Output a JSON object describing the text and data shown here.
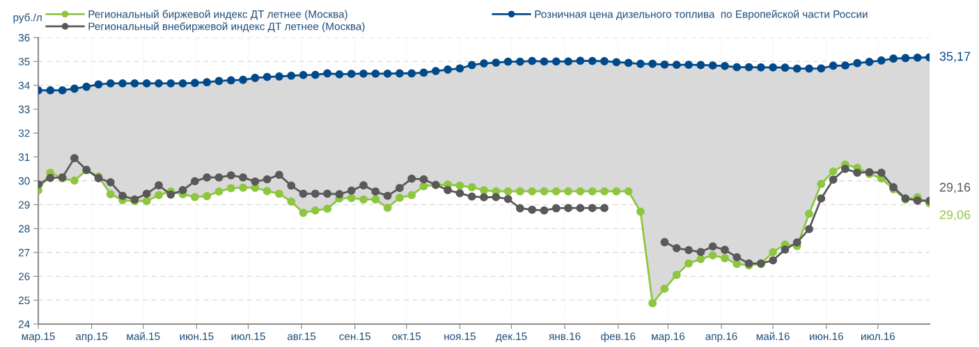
{
  "chart_data": {
    "type": "line",
    "ylabel": "руб./л",
    "marker": "circle",
    "line_style": "solid",
    "grid": true,
    "legend": "top",
    "x": [
      "2015-03-01",
      "2015-03-08",
      "2015-03-15",
      "2015-03-22",
      "2015-03-29",
      "2015-04-05",
      "2015-04-12",
      "2015-04-19",
      "2015-04-26",
      "2015-05-03",
      "2015-05-10",
      "2015-05-17",
      "2015-05-24",
      "2015-05-31",
      "2015-06-07",
      "2015-06-14",
      "2015-06-21",
      "2015-06-28",
      "2015-07-05",
      "2015-07-12",
      "2015-07-19",
      "2015-07-26",
      "2015-08-02",
      "2015-08-09",
      "2015-08-16",
      "2015-08-23",
      "2015-08-30",
      "2015-09-06",
      "2015-09-13",
      "2015-09-20",
      "2015-09-27",
      "2015-10-04",
      "2015-10-11",
      "2015-10-18",
      "2015-10-25",
      "2015-11-01",
      "2015-11-08",
      "2015-11-15",
      "2015-11-22",
      "2015-11-29",
      "2015-12-06",
      "2015-12-13",
      "2015-12-20",
      "2015-12-27",
      "2016-01-03",
      "2016-01-10",
      "2016-01-17",
      "2016-01-24",
      "2016-01-31",
      "2016-02-07",
      "2016-02-14",
      "2016-02-21",
      "2016-02-28",
      "2016-03-06",
      "2016-03-13",
      "2016-03-20",
      "2016-03-27",
      "2016-04-03",
      "2016-04-10",
      "2016-04-17",
      "2016-04-24",
      "2016-05-01",
      "2016-05-08",
      "2016-05-15",
      "2016-05-22",
      "2016-05-29",
      "2016-06-05",
      "2016-06-12",
      "2016-06-19",
      "2016-06-26",
      "2016-07-03",
      "2016-07-10",
      "2016-07-17",
      "2016-07-24",
      "2016-07-31"
    ],
    "xlim": [
      "2015-03-01",
      "2016-07-31"
    ],
    "xticks": [
      {
        "value": "2015-03-01",
        "label": "мар.15"
      },
      {
        "value": "2015-04-01",
        "label": "апр.15"
      },
      {
        "value": "2015-05-01",
        "label": "май.15"
      },
      {
        "value": "2015-06-01",
        "label": "июн.15"
      },
      {
        "value": "2015-07-01",
        "label": "июл.15"
      },
      {
        "value": "2015-08-01",
        "label": "авг.15"
      },
      {
        "value": "2015-09-01",
        "label": "сен.15"
      },
      {
        "value": "2015-10-01",
        "label": "окт.15"
      },
      {
        "value": "2015-11-01",
        "label": "ноя.15"
      },
      {
        "value": "2015-12-01",
        "label": "дек.15"
      },
      {
        "value": "2016-01-01",
        "label": "янв.16"
      },
      {
        "value": "2016-02-01",
        "label": "фев.16"
      },
      {
        "value": "2016-03-01",
        "label": "мар.16"
      },
      {
        "value": "2016-04-01",
        "label": "апр.16"
      },
      {
        "value": "2016-05-01",
        "label": "май.16"
      },
      {
        "value": "2016-06-01",
        "label": "июн.16"
      },
      {
        "value": "2016-07-01",
        "label": "июл.16"
      }
    ],
    "ylim": [
      24,
      36
    ],
    "yticks": [
      24,
      25,
      26,
      27,
      28,
      29,
      30,
      31,
      32,
      33,
      34,
      35,
      36
    ],
    "series": [
      {
        "name": "Региональный биржевой индекс ДТ летнее (Москва)",
        "color": "#8dc63f",
        "values": [
          29.6,
          30.34,
          30.1,
          30.01,
          30.44,
          30.18,
          29.44,
          29.19,
          29.15,
          29.15,
          29.4,
          29.55,
          29.44,
          29.32,
          29.36,
          29.55,
          29.69,
          29.71,
          29.71,
          29.57,
          29.46,
          29.13,
          28.66,
          28.76,
          28.83,
          29.26,
          29.28,
          29.22,
          29.22,
          28.87,
          29.29,
          29.4,
          29.77,
          29.83,
          29.84,
          29.8,
          29.73,
          29.6,
          29.56,
          29.56,
          29.56,
          29.56,
          29.56,
          29.56,
          29.56,
          29.56,
          29.56,
          29.56,
          29.56,
          29.56,
          28.71,
          24.87,
          25.48,
          26.06,
          26.54,
          26.72,
          26.88,
          26.76,
          26.52,
          26.46,
          26.52,
          27.01,
          27.33,
          27.27,
          28.62,
          29.87,
          30.39,
          30.68,
          30.54,
          30.29,
          30.1,
          29.65,
          29.22,
          29.31,
          29.06
        ]
      },
      {
        "name": "Региональный внебиржевой индекс ДТ летнее (Москва)",
        "color": "#595959",
        "values": [
          29.85,
          30.12,
          30.14,
          30.95,
          30.46,
          30.11,
          29.94,
          29.37,
          29.22,
          29.46,
          29.81,
          29.42,
          29.61,
          29.98,
          30.14,
          30.14,
          30.23,
          30.14,
          29.97,
          30.06,
          30.25,
          29.8,
          29.46,
          29.46,
          29.46,
          29.44,
          29.59,
          29.81,
          29.55,
          29.37,
          29.7,
          30.09,
          30.06,
          29.83,
          29.61,
          29.48,
          29.34,
          29.31,
          29.32,
          29.24,
          28.85,
          28.79,
          28.76,
          28.85,
          28.86,
          28.86,
          28.86,
          28.86,
          null,
          null,
          null,
          null,
          27.43,
          27.18,
          27.1,
          27.02,
          27.25,
          27.11,
          26.8,
          26.54,
          26.54,
          26.67,
          27.12,
          27.42,
          27.98,
          29.26,
          30.05,
          30.5,
          30.34,
          30.36,
          30.34,
          29.73,
          29.26,
          29.17,
          29.16
        ]
      },
      {
        "name": "Розничная цена дизельного топлива  по Европейской части России",
        "color": "#004a8c",
        "values": [
          33.79,
          33.79,
          33.79,
          33.86,
          33.94,
          34.04,
          34.08,
          34.08,
          34.08,
          34.08,
          34.08,
          34.08,
          34.08,
          34.1,
          34.13,
          34.18,
          34.21,
          34.23,
          34.31,
          34.35,
          34.37,
          34.4,
          34.43,
          34.44,
          34.5,
          34.46,
          34.48,
          34.49,
          34.49,
          34.49,
          34.5,
          34.5,
          34.53,
          34.6,
          34.66,
          34.71,
          34.85,
          34.92,
          34.95,
          34.99,
          34.99,
          35.02,
          35.0,
          35.0,
          35.0,
          35.03,
          35.02,
          35.01,
          34.97,
          34.94,
          34.9,
          34.9,
          34.87,
          34.86,
          34.86,
          34.85,
          34.83,
          34.81,
          34.76,
          34.76,
          34.75,
          34.75,
          34.74,
          34.7,
          34.7,
          34.71,
          34.82,
          34.83,
          34.93,
          34.98,
          35.04,
          35.12,
          35.14,
          35.16,
          35.17
        ],
        "upper": [
          33.79,
          33.79,
          33.79,
          33.86,
          33.94,
          34.04,
          34.08,
          34.08,
          34.08,
          34.08,
          34.08,
          34.08,
          34.08,
          34.1,
          34.13,
          34.18,
          34.21,
          34.23,
          34.31,
          34.35,
          34.37,
          34.4,
          34.43,
          34.44,
          34.5,
          34.46,
          34.48,
          34.49,
          34.49,
          34.49,
          34.5,
          34.5,
          34.53,
          34.6,
          34.66,
          34.71,
          34.85,
          34.92,
          34.95,
          34.99,
          34.99,
          35.02,
          35.0,
          35.0,
          35.0,
          35.03,
          35.02,
          35.01,
          34.97,
          34.94,
          34.9,
          34.9,
          34.87,
          34.86,
          34.86,
          34.85,
          34.83,
          34.81,
          34.76,
          34.76,
          34.75,
          34.75,
          34.74,
          34.7,
          34.7,
          34.71,
          34.82,
          34.83,
          34.93,
          34.98,
          35.04,
          35.12,
          35.14,
          35.16,
          35.17
        ],
        "lower": [
          29.6,
          30.34,
          30.1,
          30.01,
          30.44,
          30.18,
          29.44,
          29.19,
          29.15,
          29.15,
          29.4,
          29.55,
          29.44,
          29.32,
          29.36,
          29.55,
          29.69,
          29.71,
          29.71,
          29.57,
          29.46,
          29.13,
          28.66,
          28.76,
          28.83,
          29.26,
          29.28,
          29.22,
          29.22,
          28.87,
          29.29,
          29.4,
          29.77,
          29.83,
          29.84,
          29.8,
          29.73,
          29.6,
          29.56,
          29.56,
          29.56,
          29.56,
          29.56,
          29.56,
          29.56,
          29.56,
          29.56,
          29.56,
          29.56,
          29.56,
          28.71,
          24.87,
          25.48,
          26.06,
          26.54,
          26.72,
          26.88,
          26.76,
          26.52,
          26.46,
          26.52,
          27.01,
          27.33,
          27.27,
          28.62,
          29.87,
          30.39,
          30.68,
          30.54,
          30.29,
          30.1,
          29.65,
          29.22,
          29.31,
          29.06
        ]
      }
    ],
    "annotations": [
      {
        "text": "35,17",
        "x": "2016-07-31",
        "y": 35.17
      },
      {
        "text": "29,16",
        "x": "2016-07-31",
        "y": 29.16
      },
      {
        "text": "29,06",
        "x": "2016-07-31",
        "y": 29.06
      }
    ]
  }
}
